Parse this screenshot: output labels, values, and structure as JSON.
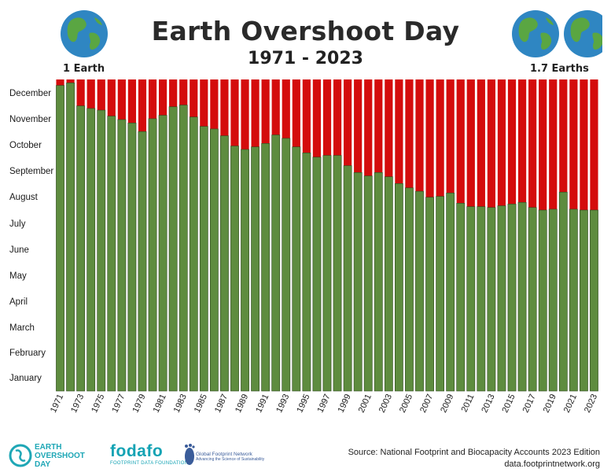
{
  "header": {
    "title": "Earth Overshoot Day",
    "subtitle": "1971 - 2023",
    "left_label": "1 Earth",
    "right_label": "1.7 Earths"
  },
  "footer": {
    "logo1_text": "EARTH OVERSHOOT DAY",
    "logo1_line1": "EARTH",
    "logo1_line2": "OVERSHOOT",
    "logo1_line3": "DAY",
    "logo2_text": "fodafo",
    "logo2_sub": "FOOTPRINT DATA FOUNDATION",
    "logo3_line1": "Global Footprint Network",
    "logo3_line2": "Advancing the Science of Sustainability",
    "source_line1": "Source: National Footprint and Biocapacity Accounts 2023 Edition",
    "source_line2": "data.footprintnetwork.org"
  },
  "colors": {
    "green": "#5e8c3f",
    "red": "#d40c0c",
    "ocean": "#2f86c2",
    "land": "#5aa642",
    "brand_teal": "#14a3b4"
  },
  "chart_data": {
    "type": "bar",
    "title": "Earth Overshoot Day",
    "subtitle": "1971 - 2023",
    "x_tick_labels": [
      "1971",
      "1973",
      "1975",
      "1977",
      "1979",
      "1981",
      "1983",
      "1985",
      "1987",
      "1989",
      "1991",
      "1993",
      "1995",
      "1997",
      "1999",
      "2001",
      "2003",
      "2005",
      "2007",
      "2009",
      "2011",
      "2013",
      "2015",
      "2017",
      "2019",
      "2021",
      "2023"
    ],
    "y_tick_labels": [
      "January",
      "February",
      "March",
      "April",
      "May",
      "June",
      "July",
      "August",
      "September",
      "October",
      "November",
      "December"
    ],
    "ylim": [
      1,
      366
    ],
    "y_unit": "day of year",
    "series": [
      {
        "name": "Overshoot day",
        "x": [
          1971,
          1972,
          1973,
          1974,
          1975,
          1976,
          1977,
          1978,
          1979,
          1980,
          1981,
          1982,
          1983,
          1984,
          1985,
          1986,
          1987,
          1988,
          1989,
          1990,
          1991,
          1992,
          1993,
          1994,
          1995,
          1996,
          1997,
          1998,
          1999,
          2000,
          2001,
          2002,
          2003,
          2004,
          2005,
          2006,
          2007,
          2008,
          2009,
          2010,
          2011,
          2012,
          2013,
          2014,
          2015,
          2016,
          2017,
          2018,
          2019,
          2020,
          2021,
          2022,
          2023
        ],
        "values": [
          359,
          362,
          335,
          332,
          330,
          323,
          319,
          315,
          305,
          320,
          324,
          334,
          336,
          322,
          311,
          308,
          300,
          288,
          284,
          287,
          291,
          301,
          297,
          287,
          280,
          275,
          277,
          277,
          265,
          257,
          253,
          257,
          252,
          244,
          239,
          235,
          228,
          229,
          233,
          221,
          217,
          217,
          216,
          218,
          220,
          222,
          216,
          213,
          214,
          234,
          214,
          213,
          213
        ]
      }
    ],
    "grid": false,
    "legend": "none"
  }
}
